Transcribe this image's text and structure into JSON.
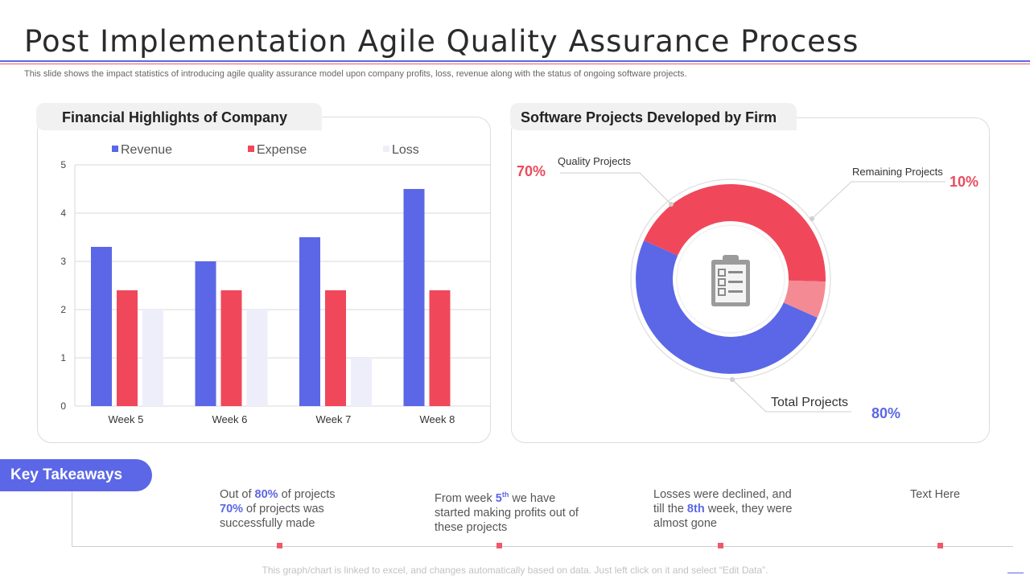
{
  "header": {
    "title": "Post Implementation Agile Quality Assurance Process",
    "subtitle": "This slide shows the impact statistics of introducing agile quality assurance model upon company profits, loss, revenue along with the status of ongoing software projects."
  },
  "left_panel": {
    "title": "Financial Highlights of Company"
  },
  "right_panel": {
    "title": "Software Projects Developed by Firm"
  },
  "colors": {
    "revenue": "#5b67e6",
    "expense": "#f0485a",
    "loss": "#eeeefb",
    "remaining": "#f48a93",
    "accent_red": "#e84c5d",
    "accent_blue": "#5b67e6"
  },
  "chart_data": [
    {
      "type": "bar",
      "title": "Financial Highlights of Company",
      "categories": [
        "Week 5",
        "Week 6",
        "Week 7",
        "Week 8"
      ],
      "series": [
        {
          "name": "Revenue",
          "values": [
            3.3,
            3.0,
            3.5,
            4.5
          ]
        },
        {
          "name": "Expense",
          "values": [
            2.4,
            2.4,
            2.4,
            2.4
          ]
        },
        {
          "name": "Loss",
          "values": [
            2.0,
            2.0,
            1.0,
            0
          ]
        }
      ],
      "yticks": [
        "0",
        "1",
        "2",
        "3",
        "4",
        "5"
      ],
      "ylim": [
        0,
        5
      ],
      "grid": true,
      "legend": "top"
    },
    {
      "type": "pie",
      "title": "Software Projects Developed by Firm",
      "donut": true,
      "slices": [
        {
          "name": "Total Projects",
          "value": 80,
          "label": "80%"
        },
        {
          "name": "Quality Projects",
          "value": 70,
          "label": "70%"
        },
        {
          "name": "Remaining Projects",
          "value": 10,
          "label": "10%"
        }
      ]
    }
  ],
  "takeaways": {
    "label": "Key Takeaways",
    "items": [
      {
        "pre": "Out of ",
        "hl1": "80%",
        "mid": " of projects",
        "hl2": "70%",
        "post": "  of projects was successfully made"
      },
      {
        "pre": "From week ",
        "hl1": "5",
        "sup": "th",
        "post": " we have started making profits out of these projects"
      },
      {
        "pre": "Losses were declined, and till the ",
        "hl1": "8th",
        "post": " week, they were almost gone"
      },
      {
        "text": "Text Here"
      }
    ]
  },
  "footer": "This graph/chart is linked to excel, and changes automatically based on data. Just left click on it and select “Edit Data”."
}
